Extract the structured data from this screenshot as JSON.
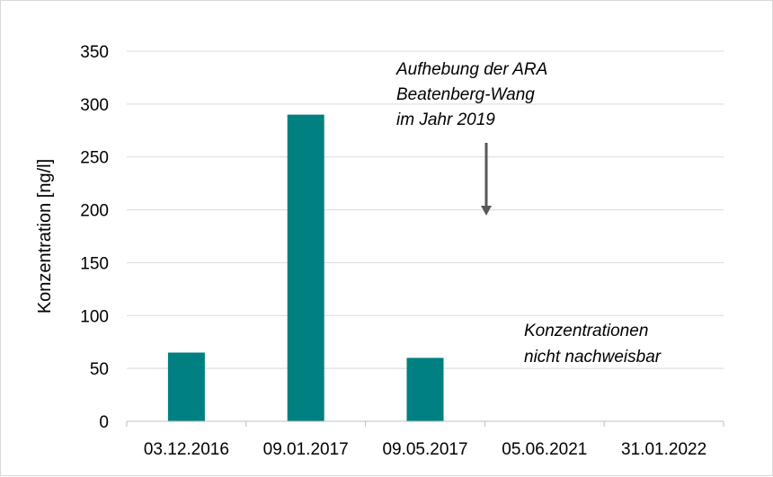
{
  "chart_data": {
    "type": "bar",
    "title": "",
    "xlabel": "",
    "ylabel": "Konzentration [ng/l]",
    "categories": [
      "03.12.2016",
      "09.01.2017",
      "09.05.2017",
      "05.06.2021",
      "31.01.2022"
    ],
    "values": [
      65,
      290,
      60,
      null,
      null
    ],
    "ylim": [
      0,
      350
    ],
    "yticks": [
      "0",
      "50",
      "100",
      "150",
      "200",
      "250",
      "300",
      "350"
    ],
    "grid": true,
    "legend": "none",
    "bar_color": "#008080",
    "annotations": {
      "arrow_note": [
        "Aufhebung der ARA",
        "Beatenberg-Wang",
        "im Jahr 2019"
      ],
      "not_detected_note": [
        "Konzentrationen",
        "nicht nachweisbar"
      ]
    }
  }
}
